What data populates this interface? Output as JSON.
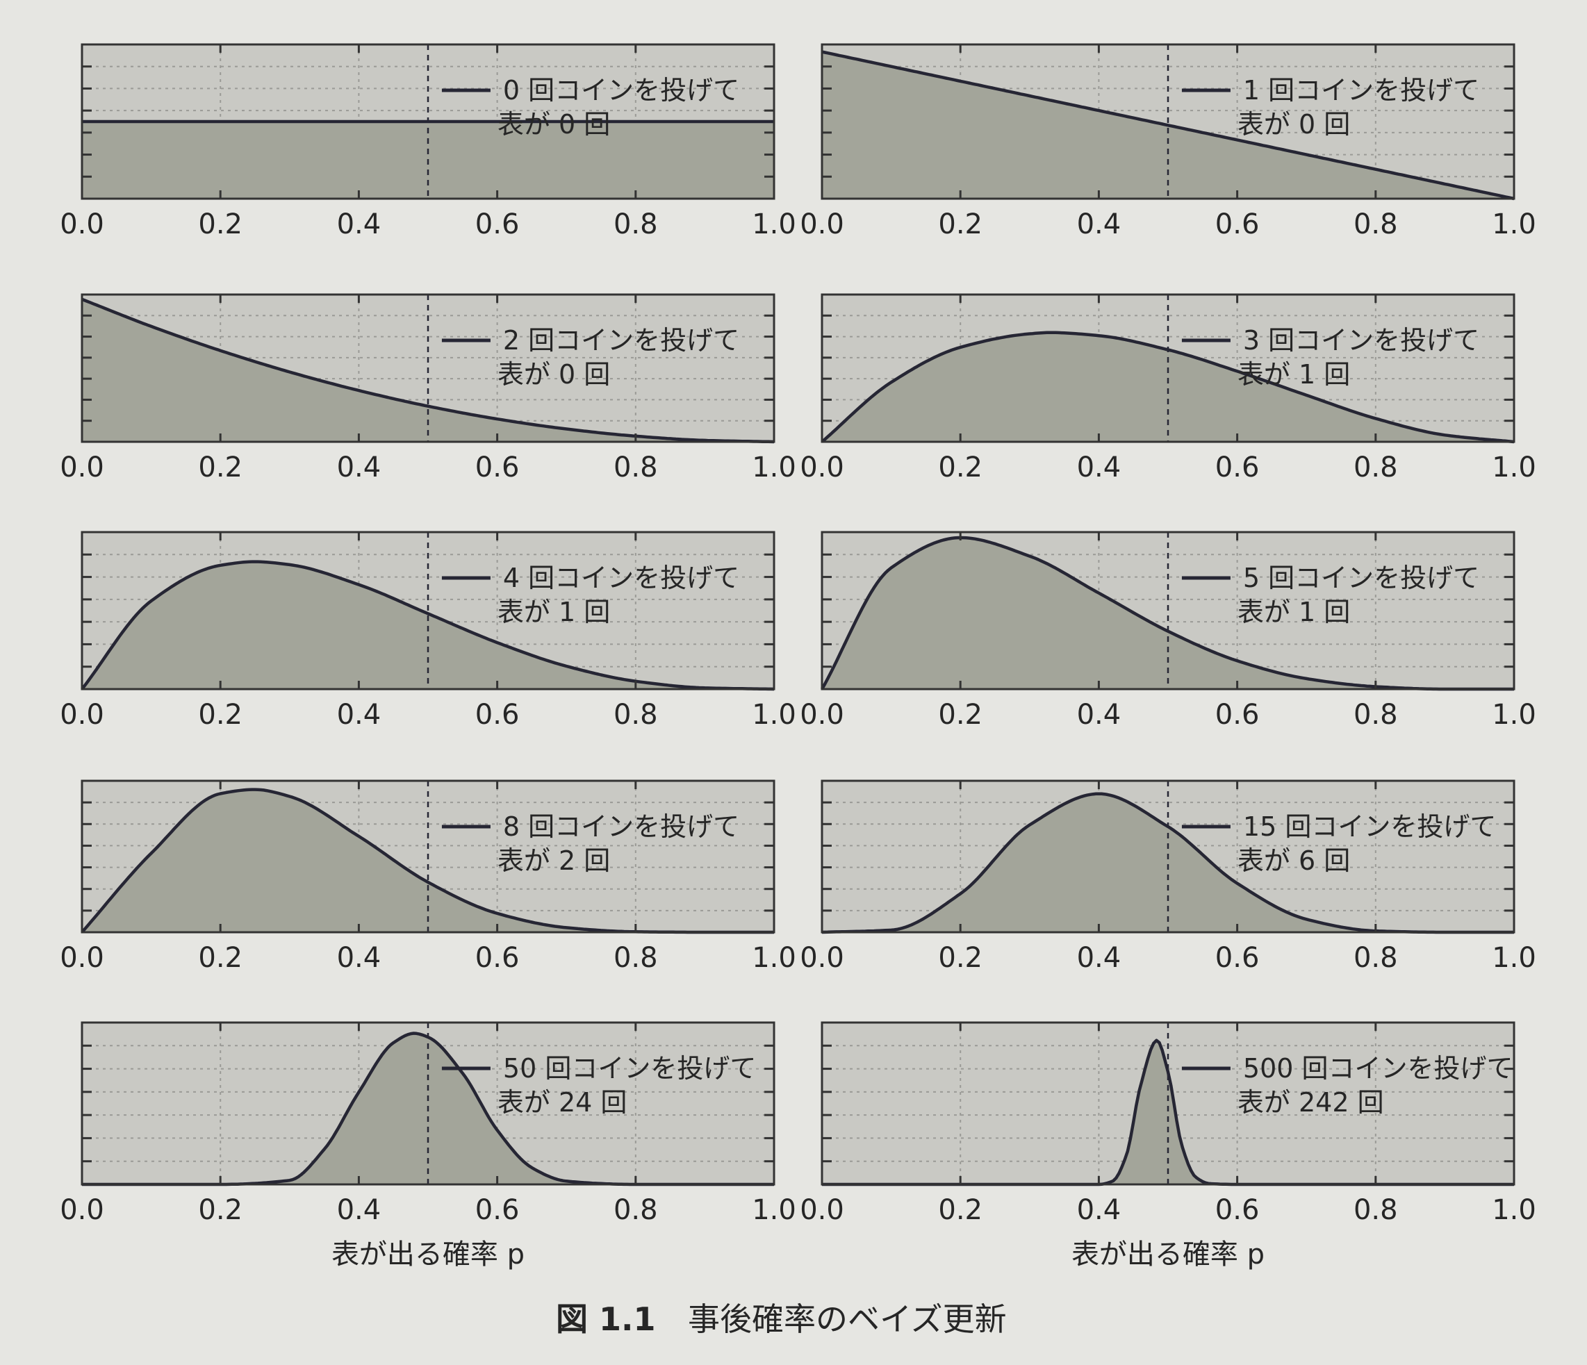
{
  "caption": {
    "number": "図 1.1",
    "title": "事後確率のベイズ更新"
  },
  "x_axis_label": "表が出る確率 p",
  "colors": {
    "background": "#e6e6e2",
    "panel_fill": "#c9c9c4",
    "area_fill": "#a3a59a",
    "curve": "#262634",
    "frame": "#333333",
    "grid": "#9a9a96"
  },
  "chart_data": [
    {
      "type": "area",
      "x": [
        0.0,
        0.2,
        0.4,
        0.5,
        0.6,
        0.8,
        1.0
      ],
      "y": [
        1.0,
        1.0,
        1.0,
        1.0,
        1.0,
        1.0,
        1.0
      ],
      "xlim": [
        0,
        1
      ],
      "ylim": [
        0,
        2.0
      ],
      "xticks": [
        "0.0",
        "0.2",
        "0.4",
        "0.6",
        "0.8",
        "1.0"
      ],
      "vline_x": 0.5,
      "legend": [
        "0 回コインを投げて",
        "表が 0 回"
      ],
      "legend_position": "top-right",
      "grid": true,
      "xlabel": ""
    },
    {
      "type": "area",
      "x": [
        0.0,
        0.2,
        0.4,
        0.5,
        0.6,
        0.8,
        1.0
      ],
      "y": [
        2.0,
        1.6,
        1.2,
        1.0,
        0.8,
        0.4,
        0.0
      ],
      "xlim": [
        0,
        1
      ],
      "ylim": [
        0,
        2.1
      ],
      "xticks": [
        "0.0",
        "0.2",
        "0.4",
        "0.6",
        "0.8",
        "1.0"
      ],
      "vline_x": 0.5,
      "legend": [
        "1 回コインを投げて",
        "表が 0 回"
      ],
      "legend_position": "top-right",
      "grid": true,
      "xlabel": ""
    },
    {
      "type": "area",
      "x": [
        0.0,
        0.1,
        0.2,
        0.3,
        0.4,
        0.5,
        0.6,
        0.7,
        0.8,
        0.9,
        1.0
      ],
      "y": [
        3.0,
        2.43,
        1.92,
        1.47,
        1.08,
        0.75,
        0.48,
        0.27,
        0.12,
        0.03,
        0.0
      ],
      "xlim": [
        0,
        1
      ],
      "ylim": [
        0,
        3.1
      ],
      "xticks": [
        "0.0",
        "0.2",
        "0.4",
        "0.6",
        "0.8",
        "1.0"
      ],
      "vline_x": 0.5,
      "legend": [
        "2 回コインを投げて",
        "表が 0 回"
      ],
      "legend_position": "top-right",
      "grid": true,
      "xlabel": ""
    },
    {
      "type": "area",
      "x": [
        0.0,
        0.1,
        0.2,
        0.3,
        0.33,
        0.4,
        0.5,
        0.6,
        0.7,
        0.8,
        0.9,
        1.0
      ],
      "y": [
        0.0,
        0.97,
        1.54,
        1.76,
        1.78,
        1.73,
        1.5,
        1.15,
        0.76,
        0.38,
        0.11,
        0.0
      ],
      "xlim": [
        0,
        1
      ],
      "ylim": [
        0,
        2.4
      ],
      "xticks": [
        "0.0",
        "0.2",
        "0.4",
        "0.6",
        "0.8",
        "1.0"
      ],
      "vline_x": 0.5,
      "legend": [
        "3 回コインを投げて",
        "表が 1 回"
      ],
      "legend_position": "top-right",
      "grid": true,
      "xlabel": ""
    },
    {
      "type": "area",
      "x": [
        0.0,
        0.1,
        0.2,
        0.25,
        0.3,
        0.4,
        0.5,
        0.6,
        0.7,
        0.8,
        0.9,
        1.0
      ],
      "y": [
        0.0,
        1.46,
        2.05,
        2.11,
        2.06,
        1.73,
        1.25,
        0.77,
        0.38,
        0.13,
        0.02,
        0.0
      ],
      "xlim": [
        0,
        1
      ],
      "ylim": [
        0,
        2.6
      ],
      "xticks": [
        "0.0",
        "0.2",
        "0.4",
        "0.6",
        "0.8",
        "1.0"
      ],
      "vline_x": 0.5,
      "legend": [
        "4 回コインを投げて",
        "表が 1 回"
      ],
      "legend_position": "top-right",
      "grid": true,
      "xlabel": ""
    },
    {
      "type": "area",
      "x": [
        0.0,
        0.1,
        0.2,
        0.3,
        0.4,
        0.5,
        0.6,
        0.7,
        0.8,
        0.9,
        1.0
      ],
      "y": [
        0.0,
        1.97,
        2.46,
        2.16,
        1.56,
        0.94,
        0.46,
        0.17,
        0.04,
        0.0,
        0.0
      ],
      "xlim": [
        0,
        1
      ],
      "ylim": [
        0,
        2.55
      ],
      "xticks": [
        "0.0",
        "0.2",
        "0.4",
        "0.6",
        "0.8",
        "1.0"
      ],
      "vline_x": 0.5,
      "legend": [
        "5 回コインを投げて",
        "表が 1 回"
      ],
      "legend_position": "top-right",
      "grid": true,
      "xlabel": ""
    },
    {
      "type": "area",
      "x": [
        0.0,
        0.1,
        0.2,
        0.25,
        0.3,
        0.4,
        0.5,
        0.6,
        0.7,
        0.8,
        0.9,
        1.0
      ],
      "y": [
        0.0,
        1.72,
        3.02,
        3.11,
        2.96,
        2.09,
        1.09,
        0.41,
        0.1,
        0.01,
        0.0,
        0.0
      ],
      "xlim": [
        0,
        1
      ],
      "ylim": [
        0,
        3.3
      ],
      "xticks": [
        "0.0",
        "0.2",
        "0.4",
        "0.6",
        "0.8",
        "1.0"
      ],
      "vline_x": 0.5,
      "legend": [
        "8 回コインを投げて",
        "表が 2 回"
      ],
      "legend_position": "top-right",
      "grid": true,
      "xlabel": ""
    },
    {
      "type": "area",
      "x": [
        0.0,
        0.1,
        0.2,
        0.3,
        0.4,
        0.5,
        0.6,
        0.7,
        0.8,
        0.9,
        1.0
      ],
      "y": [
        0.0,
        0.05,
        0.89,
        2.48,
        3.2,
        2.44,
        1.13,
        0.3,
        0.03,
        0.0,
        0.0
      ],
      "xlim": [
        0,
        1
      ],
      "ylim": [
        0,
        3.5
      ],
      "xticks": [
        "0.0",
        "0.2",
        "0.4",
        "0.6",
        "0.8",
        "1.0"
      ],
      "vline_x": 0.5,
      "legend": [
        "15 回コインを投げて",
        "表が 6 回"
      ],
      "legend_position": "top-right",
      "grid": true,
      "xlabel": ""
    },
    {
      "type": "area",
      "x": [
        0.0,
        0.2,
        0.3,
        0.35,
        0.4,
        0.45,
        0.48,
        0.5,
        0.55,
        0.6,
        0.65,
        0.7,
        0.8,
        1.0
      ],
      "y": [
        0.0,
        0.0,
        0.15,
        1.3,
        3.42,
        5.25,
        5.6,
        5.46,
        4.12,
        2.01,
        0.62,
        0.12,
        0.0,
        0.0
      ],
      "xlim": [
        0,
        1
      ],
      "ylim": [
        0,
        6.0
      ],
      "xticks": [
        "0.0",
        "0.2",
        "0.4",
        "0.6",
        "0.8",
        "1.0"
      ],
      "vline_x": 0.5,
      "legend": [
        "50 回コインを投げて",
        "表が 24 回"
      ],
      "legend_position": "top-right",
      "grid": true,
      "xlabel": "表が出る確率 p"
    },
    {
      "type": "area",
      "x": [
        0.0,
        0.4,
        0.42,
        0.44,
        0.46,
        0.484,
        0.5,
        0.52,
        0.54,
        0.56,
        0.6,
        1.0
      ],
      "y": [
        0.0,
        0.0,
        0.4,
        3.65,
        12.1,
        17.8,
        13.9,
        4.8,
        0.9,
        0.1,
        0.0,
        0.0
      ],
      "xlim": [
        0,
        1
      ],
      "ylim": [
        0,
        20.0
      ],
      "xticks": [
        "0.0",
        "0.2",
        "0.4",
        "0.6",
        "0.8",
        "1.0"
      ],
      "vline_x": 0.5,
      "legend": [
        "500 回コインを投げて",
        "表が 242 回"
      ],
      "legend_position": "top-right",
      "grid": true,
      "xlabel": "表が出る確率 p"
    }
  ]
}
